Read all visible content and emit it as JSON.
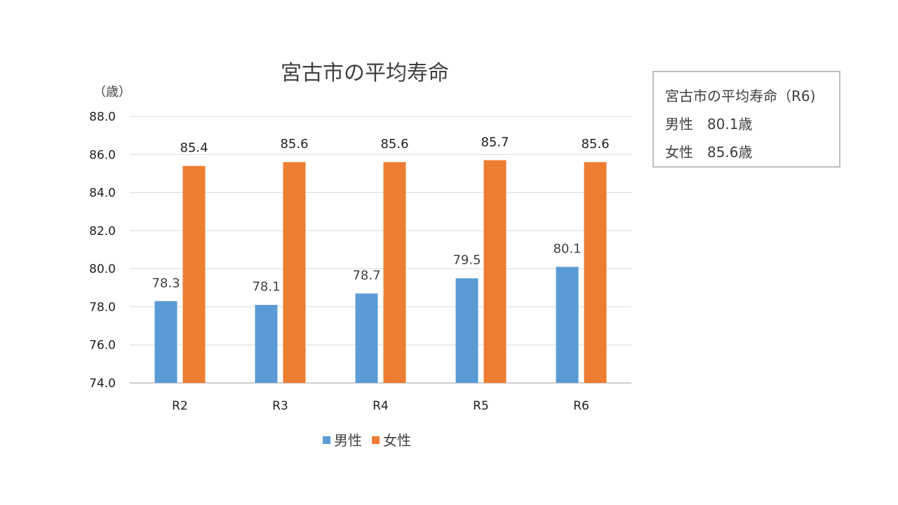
{
  "chart_data": {
    "type": "bar",
    "title": "宮古市の平均寿命",
    "ylabel": "（歳）",
    "xlabel": "",
    "categories": [
      "R2",
      "R3",
      "R4",
      "R5",
      "R6"
    ],
    "series": [
      {
        "name": "男性",
        "values": [
          78.3,
          78.1,
          78.7,
          79.5,
          80.1
        ],
        "color": "#5b9bd5"
      },
      {
        "name": "女性",
        "values": [
          85.4,
          85.6,
          85.6,
          85.7,
          85.6
        ],
        "color": "#ed7d31"
      }
    ],
    "ylim": [
      74.0,
      88.0
    ],
    "yticks": [
      "74.0",
      "76.0",
      "78.0",
      "80.0",
      "82.0",
      "84.0",
      "86.0",
      "88.0"
    ],
    "grid": true,
    "legend": "bottom"
  },
  "info_box": {
    "title": "宮古市の平均寿命（R6)",
    "male_line": "男性　80.1歳",
    "female_line": "女性　85.6歳"
  }
}
